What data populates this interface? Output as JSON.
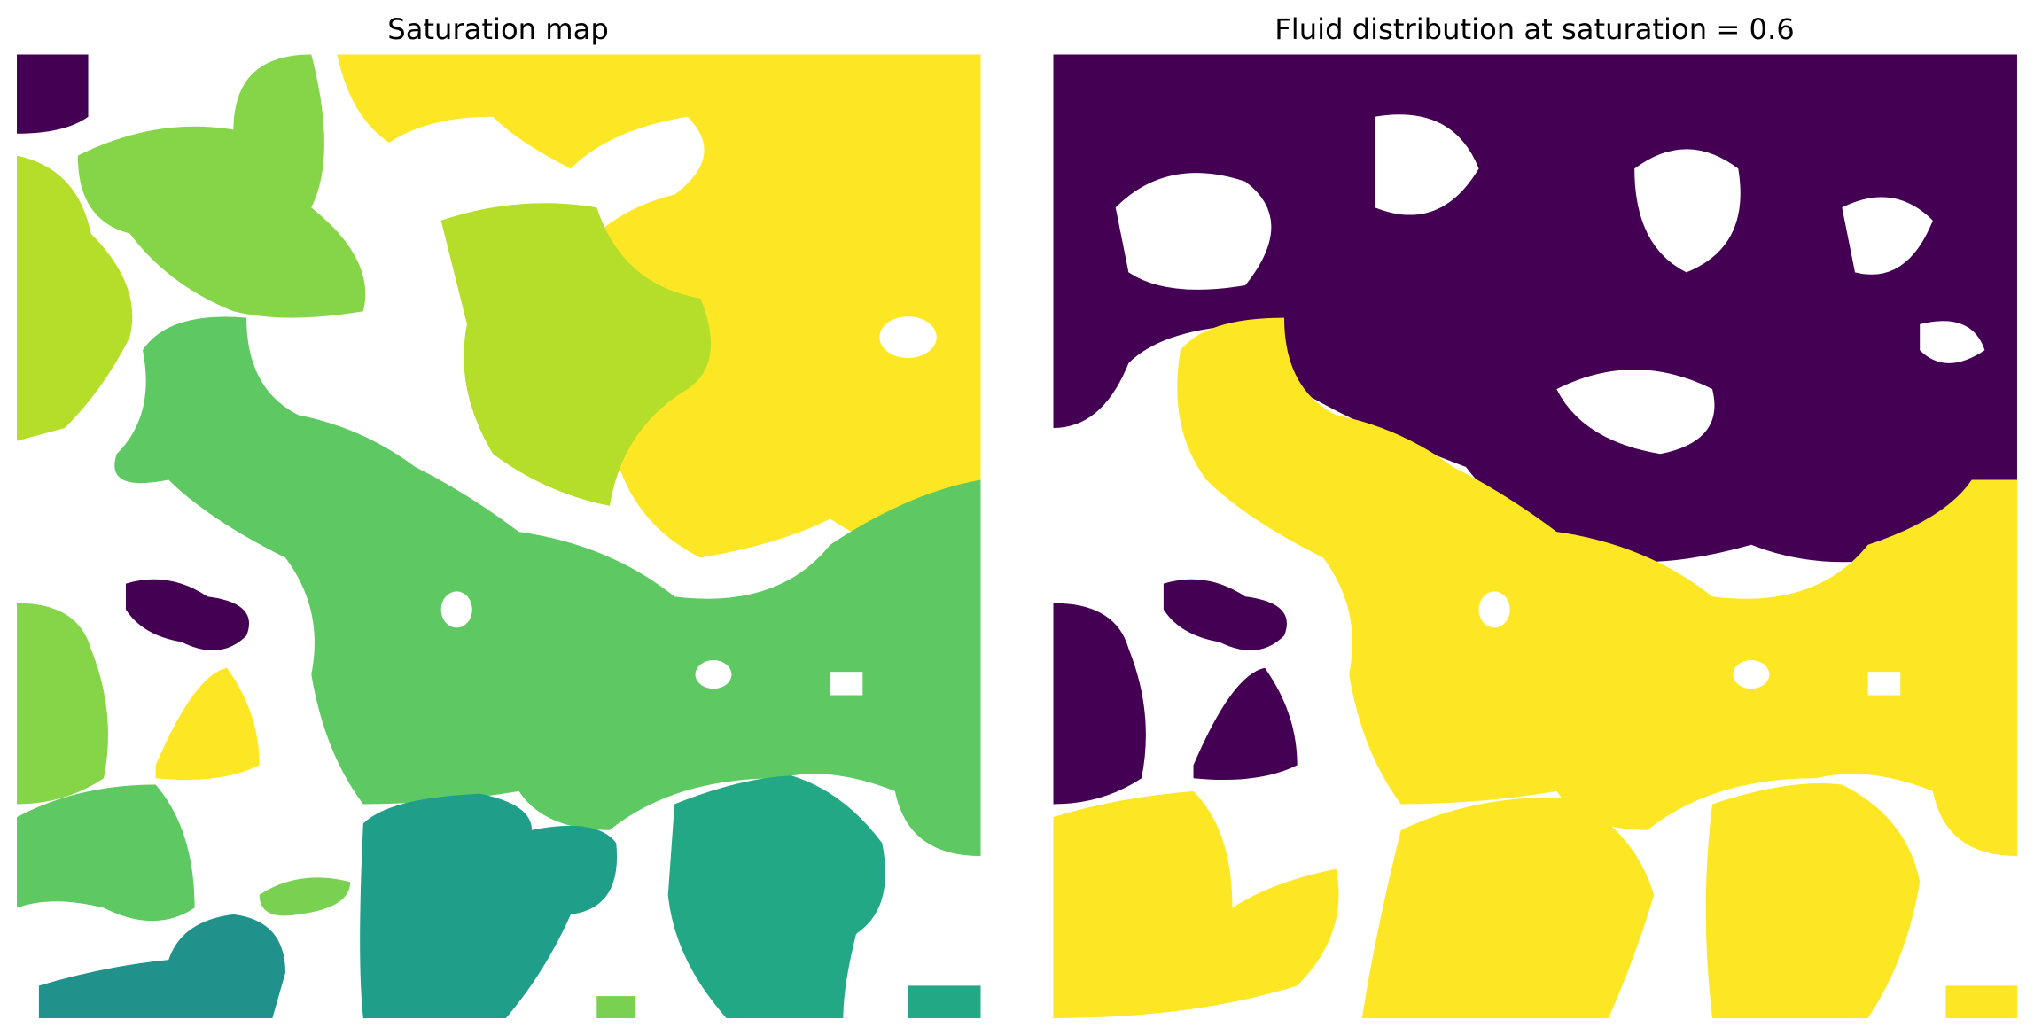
{
  "chart_data": [
    {
      "type": "image",
      "title": "Saturation map"
    },
    {
      "type": "image",
      "title": "Fluid distribution at saturation = 0.6"
    }
  ]
}
